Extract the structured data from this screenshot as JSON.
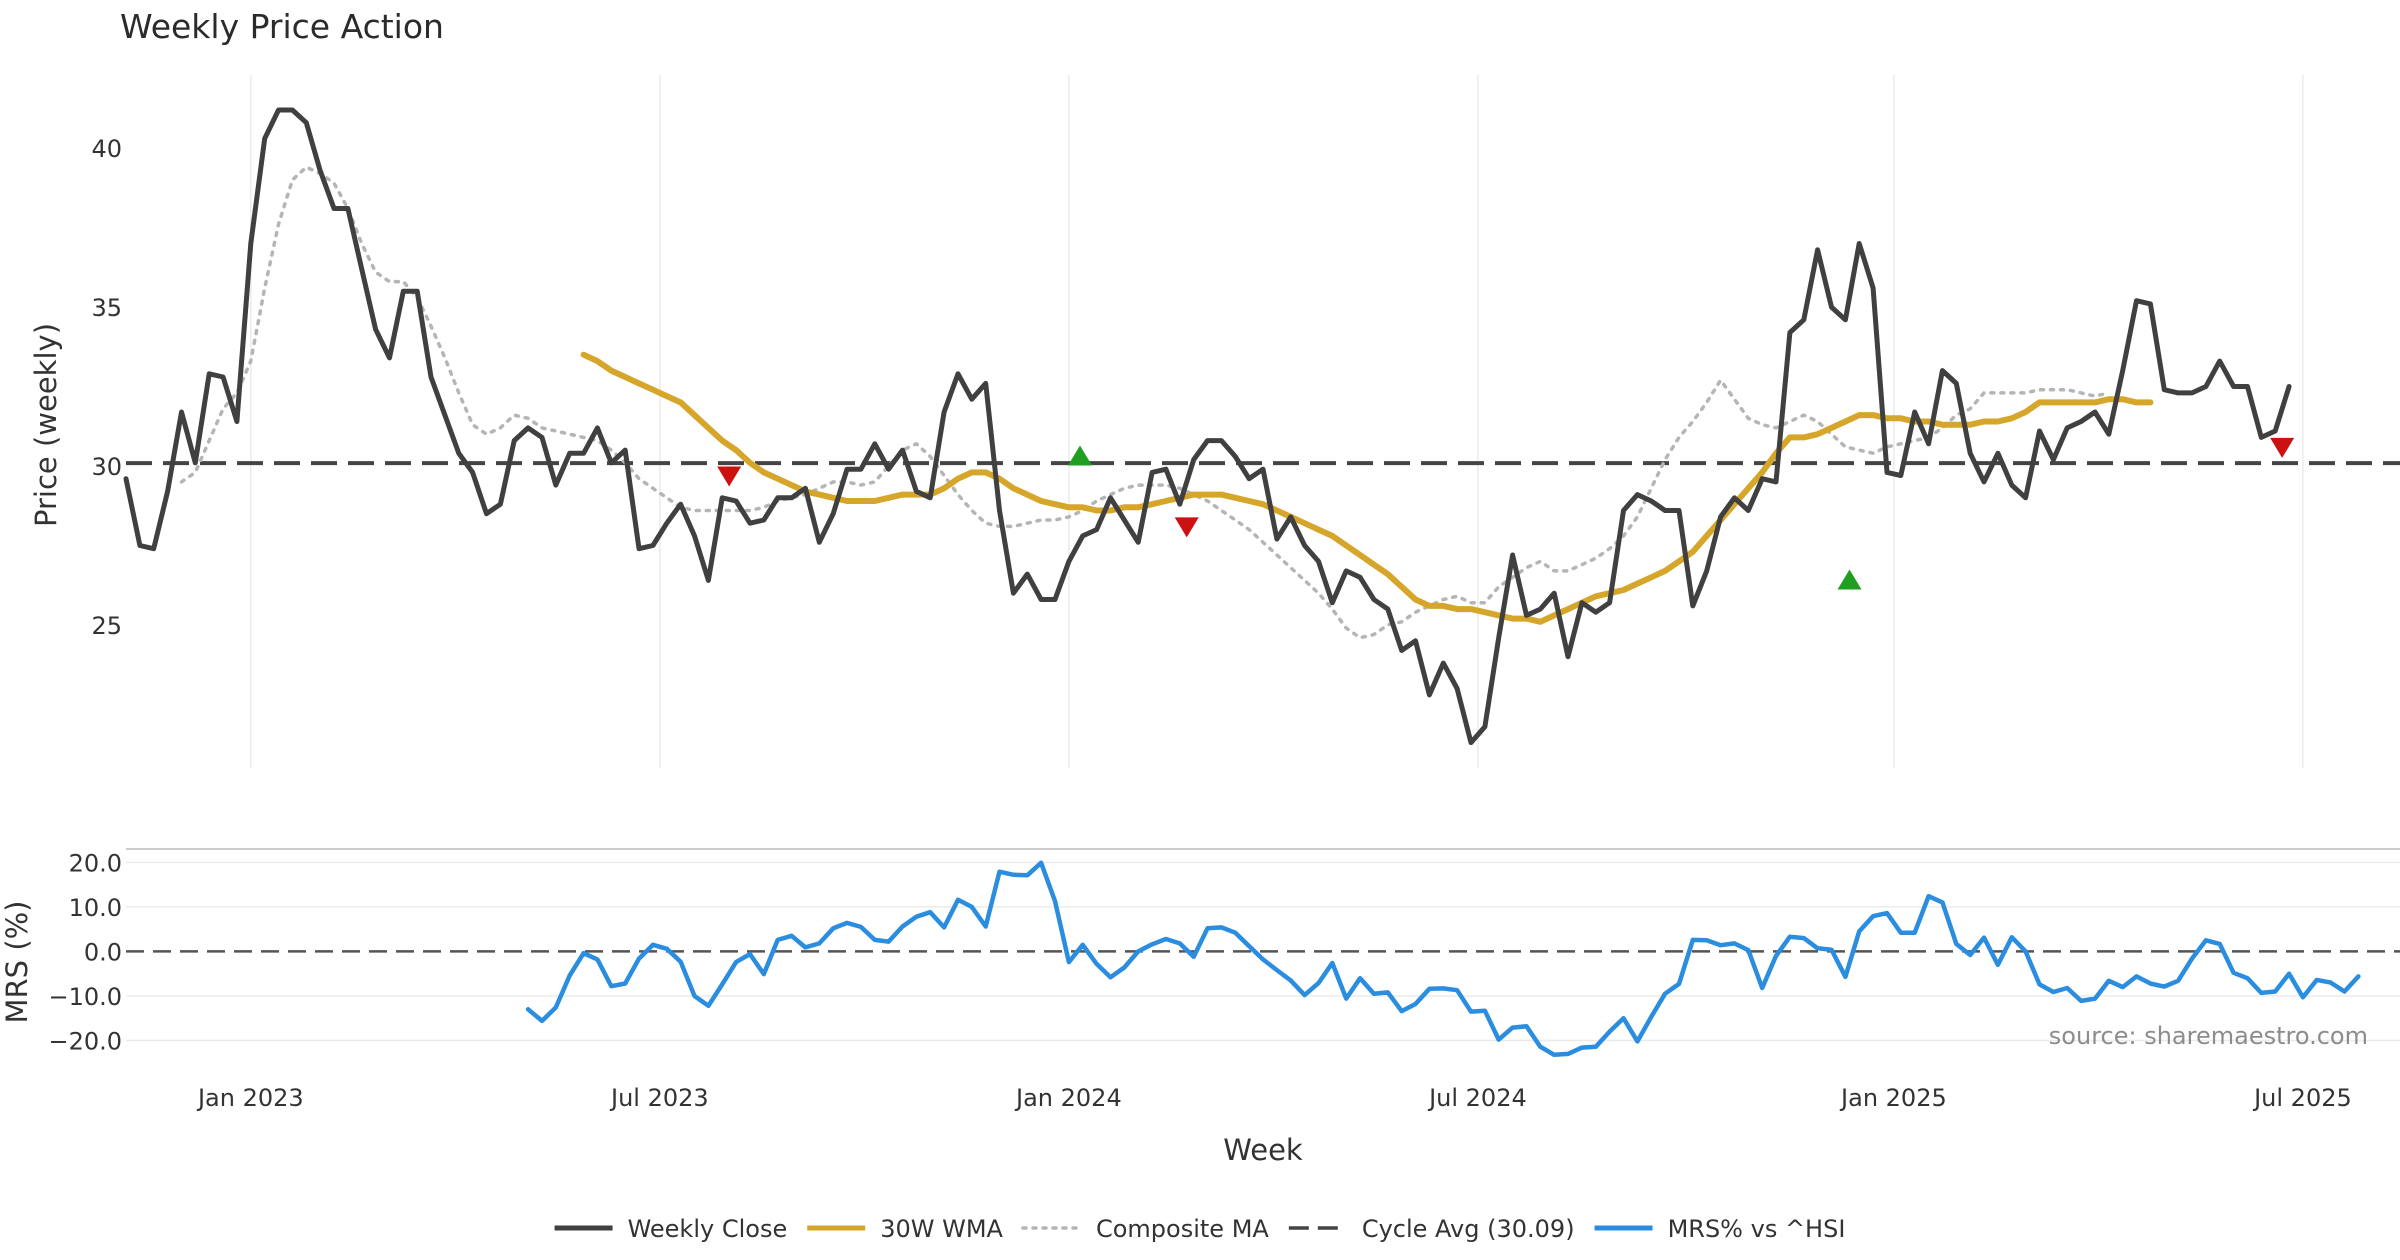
{
  "chart_data": {
    "type": "line",
    "title": "Weekly Price Action",
    "xlabel": "Week",
    "x_ticks": [
      "Jan 2023",
      "Jul 2023",
      "Jan 2024",
      "Jul 2024",
      "Jan 2025",
      "Jul 2025"
    ],
    "x_tick_weeks": [
      9,
      38.5,
      68,
      97.5,
      127.5,
      157
    ],
    "price_panel": {
      "ylabel": "Price (weekly)",
      "yticks": [
        "25",
        "30",
        "35",
        "40"
      ],
      "ytick_values": [
        25,
        30,
        35,
        40
      ],
      "ylim": [
        20.5,
        42.3
      ],
      "series": [
        {
          "name": "Weekly Close",
          "color": "#404040",
          "start_week": 0,
          "values": [
            29.6,
            27.5,
            27.4,
            29.2,
            31.7,
            30.1,
            32.9,
            32.8,
            31.4,
            37,
            40.3,
            41.2,
            41.2,
            40.8,
            39.3,
            38.1,
            38.1,
            36.2,
            34.3,
            33.4,
            35.5,
            35.5,
            32.8,
            31.6,
            30.4,
            29.8,
            28.5,
            28.8,
            30.8,
            31.2,
            30.9,
            29.4,
            30.4,
            30.4,
            31.2,
            30.1,
            30.5,
            27.4,
            27.5,
            28.2,
            28.8,
            27.8,
            26.4,
            29,
            28.9,
            28.2,
            28.3,
            29,
            29,
            29.3,
            27.6,
            28.5,
            29.9,
            29.9,
            30.7,
            29.9,
            30.5,
            29.2,
            29,
            31.7,
            32.9,
            32.1,
            32.6,
            28.6,
            26,
            26.6,
            25.8,
            25.8,
            27,
            27.8,
            28,
            29,
            28.3,
            27.6,
            29.8,
            29.9,
            28.8,
            30.2,
            30.8,
            30.8,
            30.3,
            29.6,
            29.9,
            27.7,
            28.4,
            27.5,
            27,
            25.7,
            26.7,
            26.5,
            25.8,
            25.5,
            24.2,
            24.5,
            22.8,
            23.8,
            23,
            21.3,
            21.8,
            24.6,
            27.2,
            25.3,
            25.5,
            26,
            24,
            25.7,
            25.4,
            25.7,
            28.6,
            29.1,
            28.9,
            28.6,
            28.6,
            25.6,
            26.7,
            28.4,
            29,
            28.6,
            29.6,
            29.5,
            34.2,
            34.6,
            36.8,
            35,
            34.6,
            37,
            35.6,
            29.8,
            29.7,
            31.7,
            30.7,
            33,
            32.6,
            30.4,
            29.5,
            30.4,
            29.4,
            29,
            31.1,
            30.2,
            31.2,
            31.4,
            31.7,
            31,
            33,
            35.2,
            35.1,
            32.4,
            32.3,
            32.3,
            32.5,
            33.3,
            32.5,
            32.5,
            30.9,
            31.1,
            32.5
          ]
        },
        {
          "name": "30W WMA",
          "color": "#d6a62b",
          "start_week": 33,
          "values": [
            33.5,
            33.3,
            33,
            32.8,
            32.6,
            32.4,
            32.2,
            32,
            31.6,
            31.2,
            30.8,
            30.5,
            30.1,
            29.8,
            29.6,
            29.4,
            29.2,
            29.1,
            29,
            28.9,
            28.9,
            28.9,
            29,
            29.1,
            29.1,
            29.1,
            29.3,
            29.6,
            29.8,
            29.8,
            29.6,
            29.3,
            29.1,
            28.9,
            28.8,
            28.7,
            28.7,
            28.6,
            28.6,
            28.7,
            28.7,
            28.8,
            28.9,
            29,
            29.1,
            29.1,
            29.1,
            29,
            28.9,
            28.8,
            28.6,
            28.4,
            28.2,
            28,
            27.8,
            27.5,
            27.2,
            26.9,
            26.6,
            26.2,
            25.8,
            25.6,
            25.6,
            25.5,
            25.5,
            25.4,
            25.3,
            25.2,
            25.2,
            25.1,
            25.3,
            25.5,
            25.7,
            25.9,
            26,
            26.1,
            26.3,
            26.5,
            26.7,
            27,
            27.3,
            27.8,
            28.3,
            28.8,
            29.3,
            29.8,
            30.4,
            30.9,
            30.9,
            31,
            31.2,
            31.4,
            31.6,
            31.6,
            31.5,
            31.5,
            31.4,
            31.4,
            31.3,
            31.3,
            31.3,
            31.4,
            31.4,
            31.5,
            31.7,
            32,
            32,
            32,
            32,
            32,
            32.1,
            32.1,
            32,
            32
          ]
        },
        {
          "name": "Composite MA",
          "color": "#b5b5b5",
          "start_week": 4,
          "values": [
            29.5,
            29.8,
            30.8,
            31.8,
            32.3,
            33.3,
            35.6,
            37.6,
            39,
            39.4,
            39.2,
            38.9,
            38.1,
            37,
            36.1,
            35.8,
            35.8,
            35.3,
            34.4,
            33.4,
            32.3,
            31.3,
            31,
            31.2,
            31.6,
            31.5,
            31.2,
            31.1,
            31,
            30.9,
            30.8,
            30.5,
            30.1,
            29.6,
            29.3,
            29,
            28.7,
            28.6,
            28.6,
            28.6,
            28.6,
            28.6,
            28.7,
            28.9,
            29,
            29.1,
            29.3,
            29.5,
            29.5,
            29.4,
            29.5,
            30,
            30.5,
            30.7,
            30.3,
            29.7,
            29.1,
            28.6,
            28.2,
            28.1,
            28.1,
            28.2,
            28.3,
            28.3,
            28.4,
            28.6,
            28.9,
            29.1,
            29.3,
            29.4,
            29.4,
            29.4,
            29.3,
            29.1,
            28.9,
            28.6,
            28.3,
            28,
            27.6,
            27.2,
            26.8,
            26.4,
            26,
            25.5,
            24.9,
            24.6,
            24.7,
            25,
            25.1,
            25.4,
            25.6,
            25.8,
            25.9,
            25.7,
            25.7,
            26.2,
            26.5,
            26.8,
            27,
            26.7,
            26.7,
            26.9,
            27.1,
            27.4,
            27.8,
            28.4,
            29.3,
            30.2,
            30.9,
            31.4,
            32,
            32.7,
            32.1,
            31.5,
            31.3,
            31.2,
            31.4,
            31.6,
            31.4,
            31,
            30.6,
            30.5,
            30.4,
            30.6,
            30.7,
            30.8,
            30.9,
            31.2,
            31.6,
            31.8,
            32.3,
            32.3,
            32.3,
            32.3,
            32.4,
            32.4,
            32.4,
            32.3,
            32.2,
            32.3
          ]
        }
      ],
      "reference_line": {
        "name": "Cycle Avg (30.09)",
        "value": 30.09,
        "color": "#444444"
      },
      "markers": [
        {
          "type": "sell",
          "week": 43.5,
          "value": 29.7,
          "color": "#cc1111"
        },
        {
          "type": "buy",
          "week": 68.8,
          "value": 30.3,
          "color": "#1f9e1f"
        },
        {
          "type": "sell",
          "week": 76.5,
          "value": 28.1,
          "color": "#cc1111"
        },
        {
          "type": "buy",
          "week": 124.3,
          "value": 26.4,
          "color": "#1f9e1f"
        },
        {
          "type": "sell",
          "week": 155.5,
          "value": 30.6,
          "color": "#cc1111"
        }
      ]
    },
    "mrs_panel": {
      "ylabel": "MRS (%)",
      "yticks": [
        "20.0",
        "10.0",
        "0.0",
        "−10.0",
        "−20.0"
      ],
      "ytick_values": [
        20,
        10,
        0,
        -10,
        -20
      ],
      "ylim": [
        -25.5,
        23
      ],
      "series": [
        {
          "name": "MRS% vs ^HSI",
          "color": "#2b8de0",
          "start_week": 29,
          "values": [
            -13,
            -15.6,
            -12.6,
            -5.4,
            -0.4,
            -1.8,
            -7.8,
            -7.2,
            -1.6,
            1.5,
            0.6,
            -2.3,
            -10,
            -12.2,
            -7.4,
            -2.4,
            -0.6,
            -5.1,
            2.6,
            3.5,
            0.9,
            1.8,
            5.2,
            6.4,
            5.5,
            2.6,
            2.2,
            5.6,
            7.8,
            8.8,
            5.4,
            11.6,
            10,
            5.6,
            17.9,
            17.2,
            17.1,
            19.9,
            11.3,
            -2.4,
            1.5,
            -2.8,
            -5.8,
            -3.6,
            0,
            1.6,
            2.8,
            1.8,
            -1.2,
            5.2,
            5.4,
            4.2,
            1.2,
            -1.8,
            -4.2,
            -6.5,
            -9.8,
            -7.1,
            -2.6,
            -10.6,
            -6,
            -9.5,
            -9.2,
            -13.4,
            -11.8,
            -8.4,
            -8.3,
            -8.7,
            -13.5,
            -13.3,
            -19.8,
            -17.1,
            -16.8,
            -21.4,
            -23.2,
            -23,
            -21.6,
            -21.4,
            -18,
            -15,
            -20.2,
            -14.7,
            -9.5,
            -7.3,
            2.6,
            2.5,
            1.4,
            1.8,
            0.3,
            -8.2,
            -1,
            3.3,
            3,
            0.7,
            0.4,
            -5.7,
            4.5,
            7.9,
            8.6,
            4.2,
            4.2,
            12.4,
            11,
            1.7,
            -0.8,
            3.1,
            -3,
            3.2,
            0,
            -7.4,
            -9.1,
            -8.2,
            -11.1,
            -10.6,
            -6.6,
            -8,
            -5.6,
            -7.2,
            -7.9,
            -6.6,
            -1.6,
            2.5,
            1.7,
            -4.8,
            -6,
            -9.3,
            -9,
            -5,
            -10.3,
            -6.4,
            -7,
            -9,
            -5.6
          ]
        }
      ],
      "zero_line": {
        "value": 0,
        "color": "#555555"
      }
    },
    "legend": [
      {
        "label": "Weekly Close",
        "style": "solid",
        "color": "#404040"
      },
      {
        "label": "30W WMA",
        "style": "solid",
        "color": "#d6a62b"
      },
      {
        "label": "Composite MA",
        "style": "dotted",
        "color": "#b5b5b5"
      },
      {
        "label": "Cycle Avg (30.09)",
        "style": "dashed",
        "color": "#444444"
      },
      {
        "label": "MRS% vs ^HSI",
        "style": "solid",
        "color": "#2b8de0"
      }
    ],
    "legend_position": "bottom-center",
    "source": "source: sharemaestro.com"
  }
}
